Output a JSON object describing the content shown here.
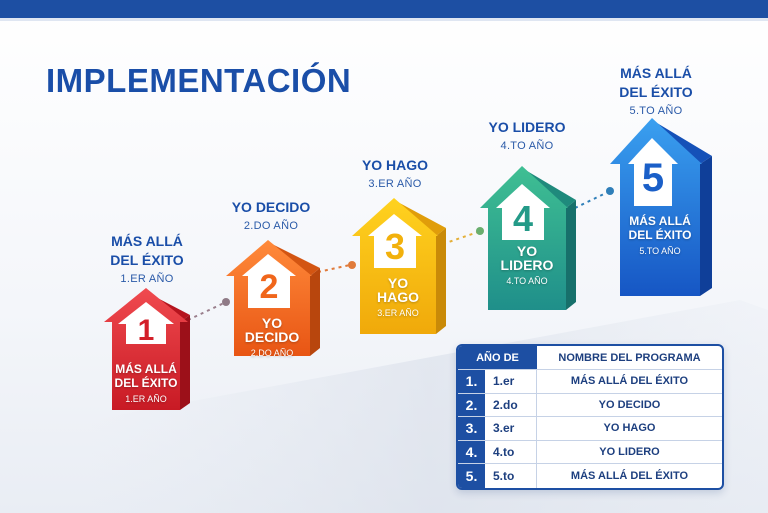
{
  "title": "IMPLEMENTACIÓN",
  "colors": {
    "brand": "#1d4fa3",
    "step1": "#e3262f",
    "step2": "#f26b21",
    "step3": "#f5b80f",
    "step4": "#2fa58f",
    "step5": "#1f6fd6"
  },
  "steps": [
    {
      "number": "1",
      "name_line1": "MÁS ALLÁ",
      "name_line2": "DEL ÉXITO",
      "year": "1.ER AÑO",
      "inner_line1": "MÁS ALLÁ",
      "inner_line2": "DEL ÉXITO",
      "inner_year": "1.ER AÑO",
      "icon": "arrow-up-icon"
    },
    {
      "number": "2",
      "name_line1": "YO DECIDO",
      "name_line2": "",
      "year": "2.DO AÑO",
      "inner_line1": "YO",
      "inner_line2": "DECIDO",
      "inner_year": "2.DO AÑO",
      "icon": "arrow-up-icon"
    },
    {
      "number": "3",
      "name_line1": "YO HAGO",
      "name_line2": "",
      "year": "3.ER AÑO",
      "inner_line1": "YO",
      "inner_line2": "HAGO",
      "inner_year": "3.ER AÑO",
      "icon": "arrow-up-icon"
    },
    {
      "number": "4",
      "name_line1": "YO LIDERO",
      "name_line2": "",
      "year": "4.TO AÑO",
      "inner_line1": "YO",
      "inner_line2": "LIDERO",
      "inner_year": "4.TO AÑO",
      "icon": "arrow-up-icon"
    },
    {
      "number": "5",
      "name_line1": "MÁS ALLÁ",
      "name_line2": "DEL ÉXITO",
      "year": "5.TO AÑO",
      "inner_line1": "MÁS ALLÁ",
      "inner_line2": "DEL ÉXITO",
      "inner_year": "5.TO AÑO",
      "icon": "arrow-up-icon"
    }
  ],
  "table": {
    "header_year": "AÑO DE",
    "header_program": "NOMBRE DEL PROGRAMA",
    "rows": [
      {
        "num": "1.",
        "year": "1.er",
        "program": "MÁS ALLÁ DEL ÉXITO"
      },
      {
        "num": "2.",
        "year": "2.do",
        "program": "YO DECIDO"
      },
      {
        "num": "3.",
        "year": "3.er",
        "program": "YO HAGO"
      },
      {
        "num": "4.",
        "year": "4.to",
        "program": "YO LIDERO"
      },
      {
        "num": "5.",
        "year": "5.to",
        "program": "MÁS ALLÁ DEL ÉXITO"
      }
    ]
  }
}
